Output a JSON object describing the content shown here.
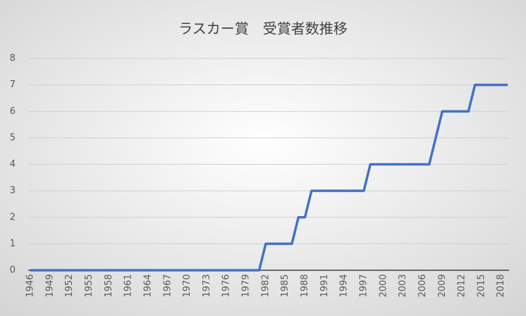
{
  "chart_data": {
    "type": "line",
    "title": "ラスカー賞　受賞者数推移",
    "x": [
      1946,
      1947,
      1948,
      1949,
      1950,
      1951,
      1952,
      1953,
      1954,
      1955,
      1956,
      1957,
      1958,
      1959,
      1960,
      1961,
      1962,
      1963,
      1964,
      1965,
      1966,
      1967,
      1968,
      1969,
      1970,
      1971,
      1972,
      1973,
      1974,
      1975,
      1976,
      1977,
      1978,
      1979,
      1980,
      1981,
      1982,
      1983,
      1984,
      1985,
      1986,
      1987,
      1988,
      1989,
      1990,
      1991,
      1992,
      1993,
      1994,
      1995,
      1996,
      1997,
      1998,
      1999,
      2000,
      2001,
      2002,
      2003,
      2004,
      2005,
      2006,
      2007,
      2008,
      2009,
      2010,
      2011,
      2012,
      2013,
      2014,
      2015,
      2016,
      2017,
      2018,
      2019
    ],
    "values": [
      0,
      0,
      0,
      0,
      0,
      0,
      0,
      0,
      0,
      0,
      0,
      0,
      0,
      0,
      0,
      0,
      0,
      0,
      0,
      0,
      0,
      0,
      0,
      0,
      0,
      0,
      0,
      0,
      0,
      0,
      0,
      0,
      0,
      0,
      0,
      0,
      1,
      1,
      1,
      1,
      1,
      2,
      2,
      3,
      3,
      3,
      3,
      3,
      3,
      3,
      3,
      3,
      4,
      4,
      4,
      4,
      4,
      4,
      4,
      4,
      4,
      4,
      5,
      6,
      6,
      6,
      6,
      6,
      7,
      7,
      7,
      7,
      7,
      7
    ],
    "color": "#4472c4",
    "xlim": [
      1946,
      2019
    ],
    "xticks": [
      1946,
      1949,
      1952,
      1955,
      1958,
      1961,
      1964,
      1967,
      1970,
      1973,
      1976,
      1979,
      1982,
      1985,
      1988,
      1991,
      1994,
      1997,
      2000,
      2003,
      2006,
      2009,
      2012,
      2015,
      2018
    ],
    "ylim": [
      0,
      8
    ],
    "yticks": [
      0,
      1,
      2,
      3,
      4,
      5,
      6,
      7,
      8
    ],
    "grid": true
  }
}
